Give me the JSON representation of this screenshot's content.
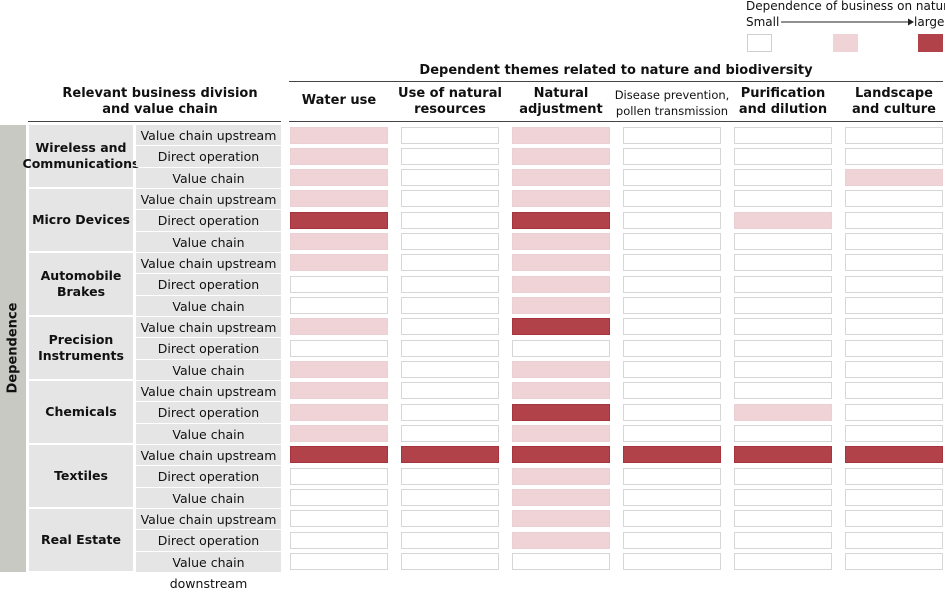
{
  "legend": {
    "title": "Dependence of business on nature",
    "small_label": "Small",
    "large_label": "large",
    "levels": [
      "#ffffff",
      "#efd3d6",
      "#b1424a"
    ]
  },
  "header": {
    "row_group_title": "Relevant business division\nand value chain",
    "columns_title": "Dependent themes related to nature and biodiversity"
  },
  "side_label": "Dependence",
  "chart_data": {
    "type": "heatmap",
    "title": "Dependent themes related to nature and biodiversity",
    "value_scale": "0 = small (white), 1 = medium (light pink), 2 = large (dark red)",
    "columns": [
      "Water use",
      "Use of natural resources",
      "Natural adjustment",
      "Disease prevention, pollen transmission",
      "Purification and dilution",
      "Landscape and culture"
    ],
    "column_labels": [
      [
        "Water use"
      ],
      [
        "Use of natural",
        "resources"
      ],
      [
        "Natural",
        "adjustment"
      ],
      [
        "Disease prevention,",
        "pollen transmission"
      ],
      [
        "Purification",
        "and dilution"
      ],
      [
        "Landscape",
        "and culture"
      ]
    ],
    "divisions": [
      {
        "name": "Wireless and Communications",
        "label_lines": [
          "Wireless and",
          "Communications"
        ],
        "rows": [
          {
            "chain": "Value chain upstream",
            "values": [
              1,
              0,
              1,
              0,
              0,
              0
            ]
          },
          {
            "chain": "Direct operation",
            "values": [
              1,
              0,
              1,
              0,
              0,
              0
            ]
          },
          {
            "chain": "Value chain downstream",
            "values": [
              1,
              0,
              1,
              0,
              0,
              1
            ]
          }
        ]
      },
      {
        "name": "Micro Devices",
        "label_lines": [
          "Micro Devices"
        ],
        "rows": [
          {
            "chain": "Value chain upstream",
            "values": [
              1,
              0,
              1,
              0,
              0,
              0
            ]
          },
          {
            "chain": "Direct operation",
            "values": [
              2,
              0,
              2,
              0,
              1,
              0
            ]
          },
          {
            "chain": "Value chain downstream",
            "values": [
              1,
              0,
              1,
              0,
              0,
              0
            ]
          }
        ]
      },
      {
        "name": "Automobile Brakes",
        "label_lines": [
          "Automobile",
          "Brakes"
        ],
        "rows": [
          {
            "chain": "Value chain upstream",
            "values": [
              1,
              0,
              1,
              0,
              0,
              0
            ]
          },
          {
            "chain": "Direct operation",
            "values": [
              0,
              0,
              1,
              0,
              0,
              0
            ]
          },
          {
            "chain": "Value chain downstream",
            "values": [
              0,
              0,
              1,
              0,
              0,
              0
            ]
          }
        ]
      },
      {
        "name": "Precision Instruments",
        "label_lines": [
          "Precision",
          "Instruments"
        ],
        "rows": [
          {
            "chain": "Value chain upstream",
            "values": [
              1,
              0,
              2,
              0,
              0,
              0
            ]
          },
          {
            "chain": "Direct operation",
            "values": [
              0,
              0,
              0,
              0,
              0,
              0
            ]
          },
          {
            "chain": "Value chain downstream",
            "values": [
              1,
              0,
              1,
              0,
              0,
              0
            ]
          }
        ]
      },
      {
        "name": "Chemicals",
        "label_lines": [
          "Chemicals"
        ],
        "rows": [
          {
            "chain": "Value chain upstream",
            "values": [
              1,
              0,
              1,
              0,
              0,
              0
            ]
          },
          {
            "chain": "Direct operation",
            "values": [
              1,
              0,
              2,
              0,
              1,
              0
            ]
          },
          {
            "chain": "Value chain downstream",
            "values": [
              1,
              0,
              1,
              0,
              0,
              0
            ]
          }
        ]
      },
      {
        "name": "Textiles",
        "label_lines": [
          "Textiles"
        ],
        "rows": [
          {
            "chain": "Value chain upstream",
            "values": [
              2,
              2,
              2,
              2,
              2,
              2
            ]
          },
          {
            "chain": "Direct operation",
            "values": [
              0,
              0,
              1,
              0,
              0,
              0
            ]
          },
          {
            "chain": "Value chain downstream",
            "values": [
              0,
              0,
              1,
              0,
              0,
              0
            ]
          }
        ]
      },
      {
        "name": "Real Estate",
        "label_lines": [
          "Real Estate"
        ],
        "rows": [
          {
            "chain": "Value chain upstream",
            "values": [
              0,
              0,
              1,
              0,
              0,
              0
            ]
          },
          {
            "chain": "Direct operation",
            "values": [
              0,
              0,
              1,
              0,
              0,
              0
            ]
          },
          {
            "chain": "Value chain downstream",
            "values": [
              0,
              0,
              0,
              0,
              0,
              0
            ]
          }
        ]
      }
    ]
  }
}
